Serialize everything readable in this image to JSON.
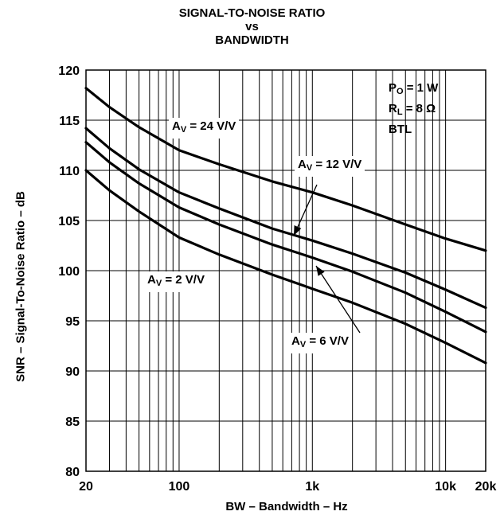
{
  "chart_data": {
    "type": "line",
    "title": [
      "SIGNAL-TO-NOISE RATIO",
      "vs",
      "BANDWIDTH"
    ],
    "xlabel": "BW – Bandwidth – Hz",
    "ylabel": "SNR – Signal-To-Noise Ratio – dB",
    "x_scale": "log",
    "xlim": [
      20,
      20000
    ],
    "ylim": [
      80,
      120
    ],
    "grid": true,
    "x_ticks": [
      {
        "value": 20,
        "label": "20"
      },
      {
        "value": 100,
        "label": "100"
      },
      {
        "value": 1000,
        "label": "1k"
      },
      {
        "value": 10000,
        "label": "10k"
      },
      {
        "value": 20000,
        "label": "20k"
      }
    ],
    "y_ticks": [
      {
        "value": 80,
        "label": "80"
      },
      {
        "value": 85,
        "label": "85"
      },
      {
        "value": 90,
        "label": "90"
      },
      {
        "value": 95,
        "label": "95"
      },
      {
        "value": 100,
        "label": "100"
      },
      {
        "value": 105,
        "label": "105"
      },
      {
        "value": 110,
        "label": "110"
      },
      {
        "value": 115,
        "label": "115"
      },
      {
        "value": 120,
        "label": "120"
      }
    ],
    "conditions": [
      {
        "main": "P",
        "sub": "O",
        "rest": " = 1 W"
      },
      {
        "main": "R",
        "sub": "L",
        "rest": " = 8 Ω"
      },
      {
        "main": "BTL",
        "sub": "",
        "rest": ""
      }
    ],
    "series": [
      {
        "label_main": "A",
        "label_sub": "V",
        "label_rest": " = 24 V/V",
        "x": [
          20,
          30,
          50,
          100,
          200,
          500,
          1000,
          2000,
          5000,
          10000,
          20000
        ],
        "y": [
          118.2,
          116.3,
          114.3,
          112.0,
          110.6,
          108.9,
          107.8,
          106.5,
          104.6,
          103.2,
          102.0
        ]
      },
      {
        "label_main": "A",
        "label_sub": "V",
        "label_rest": " = 12 V/V",
        "x": [
          20,
          30,
          50,
          100,
          200,
          500,
          1000,
          2000,
          5000,
          10000,
          20000
        ],
        "y": [
          114.2,
          112.2,
          110.1,
          107.8,
          106.2,
          104.2,
          103.0,
          101.7,
          99.8,
          98.1,
          96.3
        ]
      },
      {
        "label_main": "A",
        "label_sub": "V",
        "label_rest": " = 6 V/V",
        "x": [
          20,
          30,
          50,
          100,
          200,
          500,
          1000,
          2000,
          5000,
          10000,
          20000
        ],
        "y": [
          112.8,
          110.8,
          108.7,
          106.3,
          104.6,
          102.6,
          101.3,
          99.9,
          97.8,
          95.9,
          93.9
        ]
      },
      {
        "label_main": "A",
        "label_sub": "V",
        "label_rest": " = 2 V/V",
        "x": [
          20,
          30,
          50,
          100,
          200,
          500,
          1000,
          2000,
          5000,
          10000,
          20000
        ],
        "y": [
          110.0,
          108.0,
          105.9,
          103.3,
          101.6,
          99.6,
          98.2,
          96.8,
          94.7,
          92.8,
          90.8
        ]
      }
    ]
  }
}
